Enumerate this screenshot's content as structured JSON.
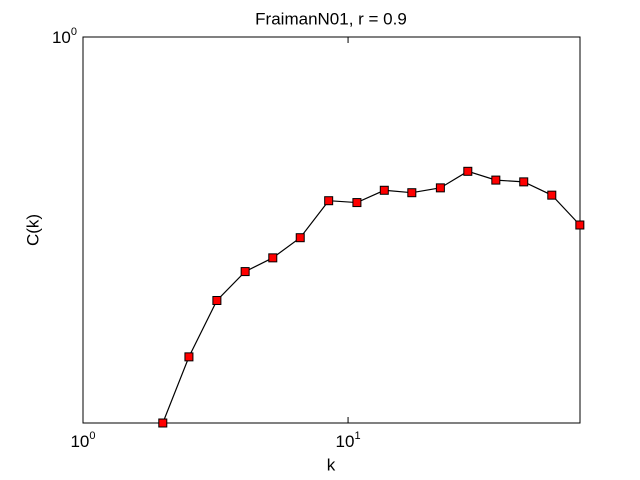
{
  "chart_data": {
    "type": "line",
    "title": "FraimanN01, r = 0.9",
    "xlabel": "k",
    "ylabel": "C(k)",
    "xscale": "log",
    "yscale": "log",
    "x": [
      2,
      2.51,
      3.2,
      4.09,
      5.2,
      6.6,
      8.45,
      10.8,
      13.7,
      17.4,
      22.3,
      28.3,
      36.1,
      46,
      58.7,
      74.9
    ],
    "series": [
      {
        "color": "#ff0000",
        "values": [
          0.4,
          0.468,
          0.535,
          0.573,
          0.592,
          0.621,
          0.678,
          0.675,
          0.695,
          0.691,
          0.699,
          0.727,
          0.712,
          0.709,
          0.687,
          0.64
        ]
      }
    ],
    "xlim": [
      1,
      75
    ],
    "ylim": [
      0.4,
      1
    ],
    "xticks": [
      {
        "value": 1,
        "label": "10^0"
      },
      {
        "value": 10,
        "label": "10^1"
      }
    ],
    "yticks": [
      {
        "value": 1,
        "label": "10^0"
      }
    ]
  }
}
